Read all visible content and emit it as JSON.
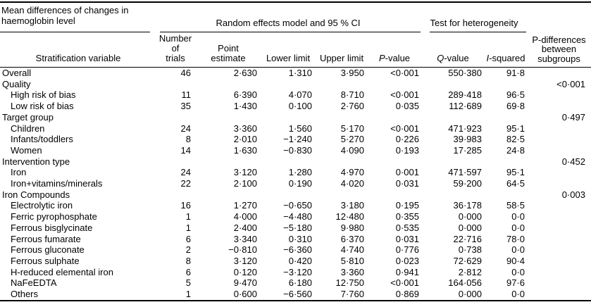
{
  "table": {
    "title_line1": "Mean differences of changes in",
    "title_line2": "haemoglobin level",
    "spanners": {
      "random_effects": "Random effects model and 95 % CI",
      "heterogeneity": "Test for heterogeneity"
    },
    "columns": {
      "stub": "Stratification variable",
      "trials_l1": "Number of",
      "trials_l2": "trials",
      "point_l1": "Point",
      "point_l2": "estimate",
      "lower": "Lower limit",
      "upper": "Upper limit",
      "p_it": "P",
      "p_rest": "-value",
      "q_it": "Q",
      "q_rest": "-value",
      "i_it": "I",
      "i_rest": "-squared",
      "pdiff_l1": "P-differences",
      "pdiff_l2": "between",
      "pdiff_l3": "subgroups"
    },
    "rows": [
      {
        "label": "Overall",
        "trials": "46",
        "point": "2·630",
        "lower": "1·310",
        "upper": "3·950",
        "p": "<0·001",
        "q": "550·380",
        "i2": "91·8",
        "pdiff": ""
      },
      {
        "label": "Quality",
        "trials": "",
        "point": "",
        "lower": "",
        "upper": "",
        "p": "",
        "q": "",
        "i2": "",
        "pdiff": "<0·001"
      },
      {
        "label": "High risk of bias",
        "trials": "11",
        "point": "6·390",
        "lower": "4·070",
        "upper": "8·710",
        "p": "<0·001",
        "q": "289·418",
        "i2": "96·5",
        "pdiff": ""
      },
      {
        "label": "Low risk of bias",
        "trials": "35",
        "point": "1·430",
        "lower": "0·100",
        "upper": "2·760",
        "p": "0·035",
        "q": "112·689",
        "i2": "69·8",
        "pdiff": ""
      },
      {
        "label": "Target group",
        "trials": "",
        "point": "",
        "lower": "",
        "upper": "",
        "p": "",
        "q": "",
        "i2": "",
        "pdiff": "0·497"
      },
      {
        "label": "Children",
        "trials": "24",
        "point": "3·360",
        "lower": "1·560",
        "upper": "5·170",
        "p": "<0·001",
        "q": "471·923",
        "i2": "95·1",
        "pdiff": ""
      },
      {
        "label": "Infants/toddlers",
        "trials": "8",
        "point": "2·010",
        "lower": "−1·240",
        "upper": "5·270",
        "p": "0·226",
        "q": "39·983",
        "i2": "82·5",
        "pdiff": ""
      },
      {
        "label": "Women",
        "trials": "14",
        "point": "1·630",
        "lower": "−0·830",
        "upper": "4·090",
        "p": "0·193",
        "q": "17·285",
        "i2": "24·8",
        "pdiff": ""
      },
      {
        "label": "Intervention type",
        "trials": "",
        "point": "",
        "lower": "",
        "upper": "",
        "p": "",
        "q": "",
        "i2": "",
        "pdiff": "0·452"
      },
      {
        "label": "Iron",
        "trials": "24",
        "point": "3·120",
        "lower": "1·280",
        "upper": "4·970",
        "p": "0·001",
        "q": "471·597",
        "i2": "95·1",
        "pdiff": ""
      },
      {
        "label": "Iron+vitamins/minerals",
        "trials": "22",
        "point": "2·100",
        "lower": "0·190",
        "upper": "4·020",
        "p": "0·031",
        "q": "59·200",
        "i2": "64·5",
        "pdiff": ""
      },
      {
        "label": "Iron Compounds",
        "trials": "",
        "point": "",
        "lower": "",
        "upper": "",
        "p": "",
        "q": "",
        "i2": "",
        "pdiff": "0·003"
      },
      {
        "label": "Electrolytic iron",
        "trials": "16",
        "point": "1·270",
        "lower": "−0·650",
        "upper": "3·180",
        "p": "0·195",
        "q": "36·178",
        "i2": "58·5",
        "pdiff": ""
      },
      {
        "label": "Ferric pyrophosphate",
        "trials": "1",
        "point": "4·000",
        "lower": "−4·480",
        "upper": "12·480",
        "p": "0·355",
        "q": "0·000",
        "i2": "0·0",
        "pdiff": ""
      },
      {
        "label": "Ferrous bisglycinate",
        "trials": "1",
        "point": "2·400",
        "lower": "−5·180",
        "upper": "9·980",
        "p": "0·535",
        "q": "0·000",
        "i2": "0·0",
        "pdiff": ""
      },
      {
        "label": "Ferrous fumarate",
        "trials": "6",
        "point": "3·340",
        "lower": "0·310",
        "upper": "6·370",
        "p": "0·031",
        "q": "22·716",
        "i2": "78·0",
        "pdiff": ""
      },
      {
        "label": "Ferrous gluconate",
        "trials": "2",
        "point": "−0·810",
        "lower": "−6·360",
        "upper": "4·740",
        "p": "0·776",
        "q": "0·738",
        "i2": "0·0",
        "pdiff": ""
      },
      {
        "label": "Ferrous sulphate",
        "trials": "8",
        "point": "3·120",
        "lower": "0·420",
        "upper": "5·810",
        "p": "0·023",
        "q": "72·629",
        "i2": "90·4",
        "pdiff": ""
      },
      {
        "label": "H-reduced elemental iron",
        "trials": "6",
        "point": "0·120",
        "lower": "−3·120",
        "upper": "3·360",
        "p": "0·941",
        "q": "2·812",
        "i2": "0·0",
        "pdiff": ""
      },
      {
        "label": "NaFeEDTA",
        "trials": "5",
        "point": "9·470",
        "lower": "6·180",
        "upper": "12·750",
        "p": "<0·001",
        "q": "164·056",
        "i2": "97·6",
        "pdiff": ""
      },
      {
        "label": "Others",
        "trials": "1",
        "point": "0·600",
        "lower": "−6·560",
        "upper": "7·760",
        "p": "0·869",
        "q": "0·000",
        "i2": "0·0",
        "pdiff": ""
      }
    ]
  }
}
